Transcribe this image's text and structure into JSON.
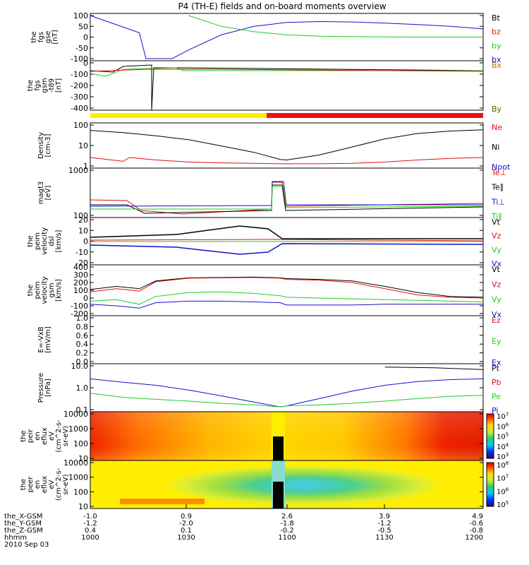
{
  "title": "P4 (TH-E) fields and on-board moments overview",
  "panels": [
    {
      "id": "fgs_gse",
      "ylabel": [
        "the",
        "fgs",
        "gse",
        "[nT]"
      ],
      "yticks": [
        "100",
        "50",
        "0",
        "-50",
        "-100"
      ],
      "legend": [
        {
          "text": "Bt",
          "color": "#000000"
        },
        {
          "text": "bz",
          "color": "#dd1111"
        },
        {
          "text": "by",
          "color": "#22cc22"
        },
        {
          "text": "bx",
          "color": "#1111cc"
        }
      ]
    },
    {
      "id": "fgs_gsm",
      "ylabel": [
        "the",
        "fgs",
        "gsm",
        "-t89",
        "[nT]"
      ],
      "yticks": [
        "0",
        "-100",
        "-200",
        "-300",
        "-400"
      ],
      "legend": [
        {
          "text": "Bx",
          "color": "#aa7700"
        },
        {
          "text": "By",
          "color": "#556600"
        }
      ]
    },
    {
      "id": "density",
      "ylabel": [
        "Density",
        "[cm-3]"
      ],
      "yticks": [
        "100",
        "10",
        "1"
      ],
      "legend": [
        {
          "text": "Ne",
          "color": "#dd1111"
        },
        {
          "text": "Ni",
          "color": "#000000"
        },
        {
          "text": "Npot",
          "color": "#1111cc"
        }
      ]
    },
    {
      "id": "temperature",
      "ylabel": [
        "magt3",
        "[eV]"
      ],
      "yticks": [
        "1000",
        "100"
      ],
      "legend": [
        {
          "text": "Te⊥",
          "color": "#dd1111"
        },
        {
          "text": "Te∥",
          "color": "#000000"
        },
        {
          "text": "Ti⊥",
          "color": "#1111cc"
        },
        {
          "text": "Ti∥",
          "color": "#22cc22"
        }
      ]
    },
    {
      "id": "peim_dsl",
      "ylabel": [
        "the",
        "peim",
        "velocity",
        "dsl",
        "[km/s]"
      ],
      "yticks": [
        "20",
        "10",
        "0",
        "-10",
        "-20"
      ],
      "legend": [
        {
          "text": "Vt",
          "color": "#000000"
        },
        {
          "text": "Vz",
          "color": "#dd1111"
        },
        {
          "text": "Vy",
          "color": "#22cc22"
        },
        {
          "text": "Vx",
          "color": "#1111cc"
        }
      ]
    },
    {
      "id": "peim_gsm",
      "ylabel": [
        "the",
        "peim",
        "velocity",
        "gsm",
        "[km/s]"
      ],
      "yticks": [
        "400",
        "300",
        "200",
        "100",
        "0",
        "-100",
        "-200"
      ],
      "legend": [
        {
          "text": "Vt",
          "color": "#000000"
        },
        {
          "text": "Vz",
          "color": "#dd1111"
        },
        {
          "text": "Vy",
          "color": "#22cc22"
        },
        {
          "text": "Vx",
          "color": "#1111cc"
        }
      ]
    },
    {
      "id": "efield",
      "ylabel": [
        "E=-VxB",
        "[mV/m]"
      ],
      "yticks": [
        "1.0",
        "0.8",
        "0.6",
        "0.4",
        "0.2",
        "0.0"
      ],
      "legend": [
        {
          "text": "Ez",
          "color": "#dd1111"
        },
        {
          "text": "Ey",
          "color": "#22cc22"
        },
        {
          "text": "Ex",
          "color": "#1111cc"
        }
      ]
    },
    {
      "id": "pressure",
      "ylabel": [
        "Pressure",
        "[nPa]"
      ],
      "yticks": [
        "10.0",
        "1.0",
        "0.1"
      ],
      "legend": [
        {
          "text": "Pt",
          "color": "#000000"
        },
        {
          "text": "Pb",
          "color": "#dd1111"
        },
        {
          "text": "Pe",
          "color": "#22cc22"
        },
        {
          "text": "Pi",
          "color": "#1111cc"
        }
      ]
    },
    {
      "id": "peir_spec",
      "ylabel": [
        "the",
        "peir",
        "en",
        "eflux",
        "eV",
        "(cm^2-s-",
        "sr-eV)"
      ],
      "yticks": [
        "10000",
        "1000",
        "100",
        "10"
      ],
      "colorbar": {
        "ticks": [
          "10^7",
          "10^6",
          "10^5",
          "10^4",
          "10^3"
        ]
      }
    },
    {
      "id": "peer_spec",
      "ylabel": [
        "the",
        "peer",
        "en",
        "eflux",
        "eV",
        "(cm^2-s-",
        "sr-eV)"
      ],
      "yticks": [
        "10000",
        "1000",
        "100",
        "10"
      ],
      "colorbar": {
        "ticks": [
          "10^8",
          "10^7",
          "10^6",
          "10^5"
        ]
      }
    }
  ],
  "xaxis": {
    "row_labels": [
      "the_X-GSM",
      "the_Y-GSM",
      "the_Z-GSM",
      "hhmm",
      "2010 Sep 03"
    ],
    "columns": [
      {
        "values": [
          "-1.0",
          "-1.2",
          "0.4",
          "1000"
        ]
      },
      {
        "values": [
          "0.9",
          "-2.0",
          "0.1",
          "1030"
        ]
      },
      {
        "values": [
          "2.6",
          "-1.8",
          "-0.2",
          "1100"
        ]
      },
      {
        "values": [
          "3.9",
          "-1.2",
          "-0.5",
          "1130"
        ]
      },
      {
        "values": [
          "4.9",
          "-0.6",
          "-0.8",
          "1200"
        ]
      }
    ]
  },
  "chart_data": {
    "type": "line",
    "title": "P4 (TH-E) fields and on-board moments overview",
    "x_ticks": [
      "1000",
      "1030",
      "1100",
      "1130",
      "1200"
    ],
    "x_range_hhmm": [
      "1000",
      "1200"
    ],
    "series": [
      {
        "panel": "fgs_gse",
        "name": "bx",
        "color": "#1111cc",
        "x": [
          1000,
          1015,
          1017,
          1025,
          1030,
          1040,
          1050,
          1100,
          1110,
          1120,
          1130,
          1140,
          1150,
          1200
        ],
        "y": [
          100,
          20,
          -100,
          -100,
          -60,
          10,
          50,
          68,
          72,
          70,
          65,
          58,
          50,
          38
        ]
      },
      {
        "panel": "fgs_gse",
        "name": "by",
        "color": "#22cc22",
        "x": [
          1030,
          1040,
          1050,
          1100,
          1110,
          1120,
          1130,
          1140,
          1150,
          1200
        ],
        "y": [
          100,
          50,
          25,
          10,
          4,
          2,
          1,
          0,
          0,
          0
        ]
      },
      {
        "panel": "density",
        "name": "Ni",
        "color": "#000000",
        "x": [
          1000,
          1010,
          1020,
          1030,
          1040,
          1050,
          1058,
          1100,
          1110,
          1120,
          1130,
          1140,
          1150,
          1200
        ],
        "y": [
          60,
          45,
          30,
          18,
          8,
          3.5,
          1.4,
          1.3,
          2.5,
          7,
          20,
          40,
          55,
          65
        ]
      },
      {
        "panel": "density",
        "name": "Ne",
        "color": "#dd1111",
        "x": [
          1000,
          1010,
          1012,
          1020,
          1030,
          1040,
          1050,
          1058,
          1100,
          1110,
          1120,
          1130,
          1140,
          1150,
          1200
        ],
        "y": [
          1.8,
          1.1,
          1.8,
          1.3,
          1.0,
          0.9,
          0.85,
          0.8,
          0.8,
          0.8,
          0.85,
          1.0,
          1.3,
          1.6,
          1.8
        ]
      },
      {
        "panel": "pressure",
        "name": "Pi",
        "color": "#1111cc",
        "x": [
          1000,
          1010,
          1020,
          1030,
          1040,
          1050,
          1058,
          1100,
          1110,
          1120,
          1130,
          1140,
          1150,
          1200
        ],
        "y": [
          1.8,
          1.1,
          0.7,
          0.35,
          0.15,
          0.06,
          0.03,
          0.035,
          0.1,
          0.3,
          0.7,
          1.2,
          1.6,
          1.8
        ]
      },
      {
        "panel": "pressure",
        "name": "Pe",
        "color": "#22cc22",
        "x": [
          1000,
          1010,
          1020,
          1030,
          1040,
          1050,
          1058,
          1100,
          1110,
          1120,
          1130,
          1140,
          1150,
          1200
        ],
        "y": [
          0.22,
          0.12,
          0.09,
          0.07,
          0.05,
          0.04,
          0.03,
          0.035,
          0.04,
          0.05,
          0.07,
          0.1,
          0.14,
          0.16
        ]
      },
      {
        "panel": "pressure",
        "name": "Pt",
        "color": "#000000",
        "x": [
          1130,
          1145,
          1200
        ],
        "y": [
          10,
          9,
          7
        ]
      },
      {
        "panel": "peim_gsm",
        "name": "Vt",
        "color": "#000000",
        "x": [
          1000,
          1008,
          1015,
          1020,
          1030,
          1040,
          1050,
          1058,
          1100,
          1110,
          1120,
          1130,
          1140,
          1150,
          1200
        ],
        "y": [
          110,
          150,
          120,
          220,
          260,
          265,
          270,
          260,
          250,
          240,
          220,
          150,
          70,
          20,
          10
        ]
      },
      {
        "panel": "peim_gsm",
        "name": "Vz",
        "color": "#dd1111",
        "x": [
          1000,
          1008,
          1015,
          1020,
          1030,
          1040,
          1050,
          1058,
          1100,
          1110,
          1120,
          1130,
          1140,
          1150,
          1200
        ],
        "y": [
          80,
          120,
          90,
          210,
          255,
          260,
          265,
          255,
          240,
          230,
          200,
          120,
          40,
          10,
          0
        ]
      },
      {
        "panel": "peim_gsm",
        "name": "Vy",
        "color": "#22cc22",
        "x": [
          1000,
          1008,
          1015,
          1020,
          1030,
          1040,
          1050,
          1058,
          1100,
          1110,
          1120,
          1130,
          1140,
          1150,
          1200
        ],
        "y": [
          -40,
          -20,
          -80,
          20,
          70,
          80,
          60,
          30,
          10,
          0,
          -10,
          -20,
          -30,
          -40,
          -50
        ]
      },
      {
        "panel": "peim_gsm",
        "name": "Vx",
        "color": "#1111cc",
        "x": [
          1000,
          1008,
          1015,
          1020,
          1030,
          1040,
          1050,
          1058,
          1100,
          1110,
          1120,
          1130,
          1140,
          1150,
          1200
        ],
        "y": [
          -80,
          -100,
          -130,
          -60,
          -40,
          -40,
          -50,
          -60,
          -90,
          -90,
          -90,
          -80,
          -80,
          -80,
          -80
        ]
      }
    ]
  }
}
